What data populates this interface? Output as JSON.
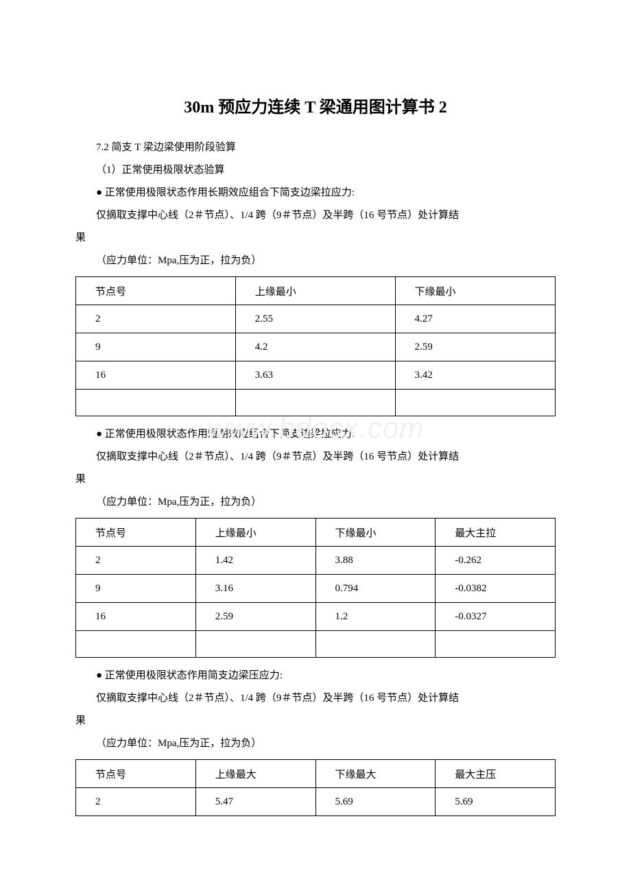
{
  "title": "30m 预应力连续 T 梁通用图计算书 2",
  "section_heading": "7.2 简支 T 梁边梁使用阶段验算",
  "sub1": "（1）正常使用极限状态验算",
  "block1": {
    "bullet": "● 正常使用极限状态作用长期效应组合下简支边梁拉应力:",
    "note_l1": "仅摘取支撑中心线（2＃节点）、1/4 跨（9＃节点）及半跨（16 号节点）处计算结",
    "note_l2": "果",
    "unit": "（应力单位：Mpa,压为正，拉为负）"
  },
  "table1": {
    "headers": [
      "节点号",
      "上缘最小",
      "下缘最小"
    ],
    "rows": [
      [
        "2",
        "2.55",
        "4.27"
      ],
      [
        "9",
        "4.2",
        "2.59"
      ],
      [
        "16",
        "3.63",
        "3.42"
      ]
    ],
    "col_widths": [
      "33.3%",
      "33.3%",
      "33.4%"
    ]
  },
  "block2": {
    "bullet": "● 正常使用极限状态作用短期效应组合下简支边梁拉应力:",
    "note_l1": "仅摘取支撑中心线（2＃节点）、1/4 跨（9＃节点）及半跨（16 号节点）处计算结",
    "note_l2": "果",
    "unit": "（应力单位：Mpa,压为正，拉为负）"
  },
  "table2": {
    "headers": [
      "节点号",
      "上缘最小",
      "下缘最小",
      "最大主拉"
    ],
    "rows": [
      [
        "2",
        "1.42",
        "3.88",
        "-0.262"
      ],
      [
        "9",
        "3.16",
        "0.794",
        "-0.0382"
      ],
      [
        "16",
        "2.59",
        "1.2",
        "-0.0327"
      ]
    ],
    "col_widths": [
      "25%",
      "25%",
      "25%",
      "25%"
    ]
  },
  "block3": {
    "bullet": "● 正常使用极限状态作用简支边梁压应力:",
    "note_l1": "仅摘取支撑中心线（2＃节点）、1/4 跨（9＃节点）及半跨（16 号节点）处计算结",
    "note_l2": "果",
    "unit": "（应力单位：Mpa,压为正，拉为负）"
  },
  "table3": {
    "headers": [
      "节点号",
      "上缘最大",
      "下缘最大",
      "最大主压"
    ],
    "rows": [
      [
        "2",
        "5.47",
        "5.69",
        "5.69"
      ]
    ],
    "col_widths": [
      "25%",
      "25%",
      "25%",
      "25%"
    ]
  },
  "watermark": "www.bdocx.com",
  "colors": {
    "text": "#000000",
    "background": "#ffffff",
    "border": "#000000",
    "watermark": "#f0f0f0"
  },
  "typography": {
    "title_fontsize": 24,
    "body_fontsize": 15,
    "font_family": "SimSun"
  }
}
